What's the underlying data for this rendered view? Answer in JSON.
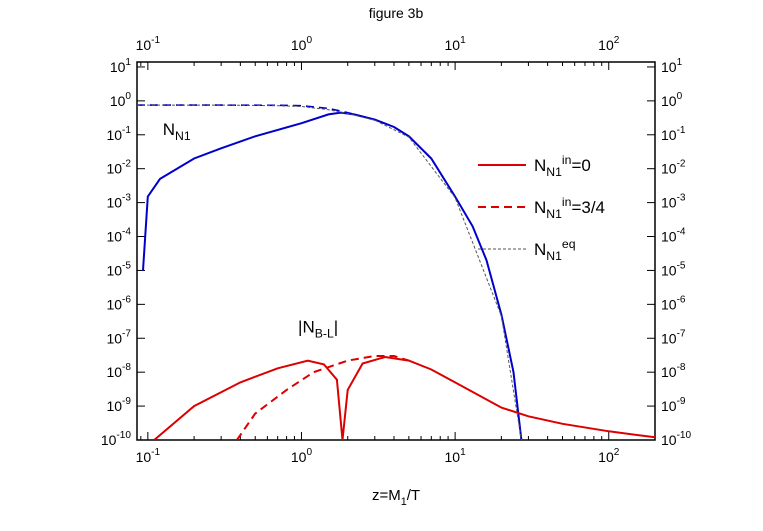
{
  "chart_data": {
    "type": "line",
    "title": "figure 3b",
    "x_label": {
      "text": "z=M",
      "sub": "1",
      "tail": "/T"
    },
    "xscale": "log",
    "yscale": "log",
    "xlim": [
      0.085,
      200
    ],
    "ylim": [
      1e-10,
      14
    ],
    "xticks": [
      {
        "value": 0.1,
        "label": "10",
        "sup": "-1"
      },
      {
        "value": 1,
        "label": "10",
        "sup": "0"
      },
      {
        "value": 10,
        "label": "10",
        "sup": "1"
      },
      {
        "value": 100,
        "label": "10",
        "sup": "2"
      }
    ],
    "yticks": [
      {
        "value": 1e-10,
        "label": "10",
        "sup": "-10"
      },
      {
        "value": 1e-09,
        "label": "10",
        "sup": "-9"
      },
      {
        "value": 1e-08,
        "label": "10",
        "sup": "-8"
      },
      {
        "value": 1e-07,
        "label": "10",
        "sup": "-7"
      },
      {
        "value": 1e-06,
        "label": "10",
        "sup": "-6"
      },
      {
        "value": 1e-05,
        "label": "10",
        "sup": "-5"
      },
      {
        "value": 0.0001,
        "label": "10",
        "sup": "-4"
      },
      {
        "value": 0.001,
        "label": "10",
        "sup": "-3"
      },
      {
        "value": 0.01,
        "label": "10",
        "sup": "-2"
      },
      {
        "value": 0.1,
        "label": "10",
        "sup": "-1"
      },
      {
        "value": 1,
        "label": "10",
        "sup": "0"
      },
      {
        "value": 10,
        "label": "10",
        "sup": "1"
      }
    ],
    "legend_loc": "upper right",
    "annotations": [
      {
        "text": "N",
        "sub": "N1",
        "at": [
          0.125,
          0.1
        ]
      },
      {
        "text": "|N",
        "sub": "B-L",
        "tail": "|",
        "at": [
          0.95,
          1.5e-07
        ]
      }
    ],
    "series": [
      {
        "name": {
          "text": "N",
          "sub": "N1",
          "sup": "in",
          "tail": "=0"
        },
        "color": "#0000cc",
        "dash": "solid",
        "width": 2,
        "in_legend": false,
        "x": [
          0.093,
          0.1,
          0.12,
          0.2,
          0.3,
          0.5,
          1,
          1.5,
          1.8,
          2.2,
          3,
          4,
          5,
          7,
          10,
          13,
          16,
          20,
          24,
          27
        ],
        "values": [
          1e-05,
          0.0015,
          0.005,
          0.02,
          0.04,
          0.09,
          0.22,
          0.4,
          0.45,
          0.4,
          0.28,
          0.17,
          0.09,
          0.02,
          0.0015,
          0.0002,
          2e-05,
          5e-07,
          1e-08,
          1e-10
        ]
      },
      {
        "name": {
          "text": "N",
          "sub": "N1",
          "sup": "in",
          "tail": "=3/4"
        },
        "color": "#0000cc",
        "dash": "dashed",
        "width": 1.6,
        "in_legend": false,
        "x": [
          0.085,
          0.3,
          0.7,
          1,
          1.5,
          2,
          3,
          4,
          5,
          7,
          10
        ],
        "values": [
          0.75,
          0.75,
          0.74,
          0.72,
          0.6,
          0.45,
          0.28,
          0.17,
          0.09,
          0.02,
          0.0015
        ]
      },
      {
        "name": {
          "text": "N",
          "sub": "N1",
          "sup": "in",
          "tail": "=0"
        },
        "color": "#dd0000",
        "dash": "solid",
        "width": 2,
        "in_legend": true,
        "x": [
          0.11,
          0.2,
          0.4,
          0.7,
          1.1,
          1.4,
          1.7,
          1.85,
          2,
          2.5,
          3.5,
          5,
          7,
          10,
          20,
          30,
          50,
          100,
          200
        ],
        "values": [
          1e-10,
          1e-09,
          5e-09,
          1.3e-08,
          2.2e-08,
          1.7e-08,
          6e-09,
          1e-10,
          3e-09,
          1.8e-08,
          2.8e-08,
          2.2e-08,
          1.2e-08,
          5e-09,
          9e-10,
          5e-10,
          3e-10,
          1.8e-10,
          1.2e-10
        ]
      },
      {
        "name": {
          "text": "N",
          "sub": "N1",
          "sup": "in",
          "tail": "=3/4"
        },
        "color": "#dd0000",
        "dash": "dashed",
        "width": 2,
        "in_legend": true,
        "x": [
          0.38,
          0.5,
          0.8,
          1.2,
          2,
          3,
          4,
          5
        ],
        "values": [
          1e-10,
          6e-10,
          3e-09,
          1e-08,
          2.2e-08,
          3e-08,
          3e-08,
          2.2e-08
        ]
      },
      {
        "name": {
          "text": "N",
          "sub": "N1",
          "sup": "eq"
        },
        "color": "#555555",
        "dash": "dotted",
        "width": 1,
        "in_legend": true,
        "x": [
          0.085,
          0.3,
          0.7,
          1,
          1.5,
          2,
          3,
          5,
          10,
          20,
          27
        ],
        "values": [
          0.75,
          0.75,
          0.72,
          0.68,
          0.55,
          0.42,
          0.27,
          0.085,
          0.0014,
          4.5e-07,
          1e-10
        ]
      }
    ]
  }
}
